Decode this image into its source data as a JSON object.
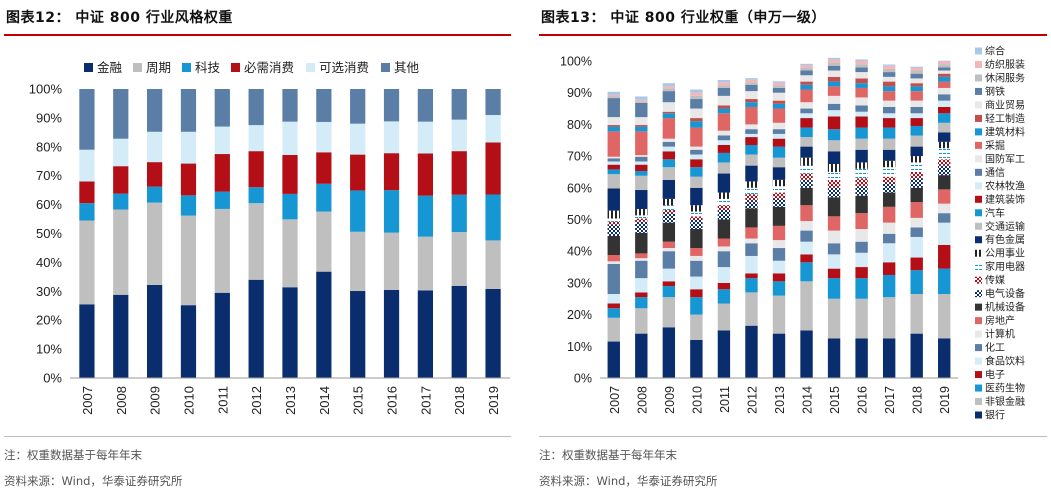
{
  "left_panel": {
    "title": "图表12： 中证 800 行业风格权重",
    "note": "注：权重数据基于每年年末",
    "source": "资料来源：Wind，华泰证券研究所"
  },
  "right_panel": {
    "title": "图表13： 中证 800 行业权重（申万一级）",
    "note": "注：权重数据基于每年年末",
    "source": "资料来源：Wind，华泰证券研究所"
  },
  "chart_data": [
    {
      "type": "bar",
      "stacked": true,
      "title": "中证 800 行业风格权重",
      "categories": [
        "2007",
        "2008",
        "2009",
        "2010",
        "2011",
        "2012",
        "2013",
        "2014",
        "2015",
        "2016",
        "2017",
        "2018",
        "2019"
      ],
      "ylim": [
        0,
        100
      ],
      "y_unit": "%",
      "y_ticks": [
        "0%",
        "10%",
        "20%",
        "30%",
        "40%",
        "50%",
        "60%",
        "70%",
        "80%",
        "90%",
        "100%"
      ],
      "legend_position": "top",
      "series": [
        {
          "name": "金融",
          "color": "#0a2d6e",
          "values": [
            25.5,
            28.8,
            32.2,
            25.2,
            29.5,
            34.0,
            31.4,
            36.8,
            30.1,
            30.5,
            30.3,
            31.9,
            30.8
          ]
        },
        {
          "name": "周期",
          "color": "#bfbfbf",
          "values": [
            29.0,
            29.5,
            28.5,
            31.0,
            29.0,
            26.5,
            23.5,
            20.8,
            20.5,
            19.8,
            18.6,
            18.6,
            16.8
          ]
        },
        {
          "name": "科技",
          "color": "#1696d2",
          "values": [
            6.0,
            5.5,
            5.5,
            7.0,
            6.0,
            5.5,
            8.8,
            9.6,
            14.3,
            14.7,
            14.2,
            12.9,
            15.9
          ]
        },
        {
          "name": "必需消费",
          "color": "#b40f17",
          "values": [
            7.5,
            9.5,
            8.5,
            11.0,
            13.0,
            12.5,
            13.5,
            10.9,
            12.4,
            12.8,
            14.6,
            15.1,
            18.0
          ]
        },
        {
          "name": "可选消费",
          "color": "#d4ecf7",
          "values": [
            11.0,
            9.5,
            10.5,
            11.0,
            9.5,
            9.0,
            11.5,
            10.5,
            10.7,
            11.0,
            11.0,
            10.9,
            9.5
          ]
        },
        {
          "name": "其他",
          "color": "#5a7ea6",
          "values": [
            21.0,
            17.2,
            14.8,
            14.8,
            13.0,
            12.5,
            11.3,
            11.4,
            12.0,
            11.2,
            11.3,
            10.6,
            9.0
          ]
        }
      ]
    },
    {
      "type": "bar",
      "stacked": true,
      "title": "中证 800 行业权重（申万一级）",
      "categories": [
        "2007",
        "2008",
        "2009",
        "2010",
        "2011",
        "2012",
        "2013",
        "2014",
        "2015",
        "2016",
        "2017",
        "2018",
        "2019"
      ],
      "ylim": [
        0,
        100
      ],
      "y_unit": "%",
      "y_ticks": [
        "0%",
        "10%",
        "20%",
        "30%",
        "40%",
        "50%",
        "60%",
        "70%",
        "80%",
        "90%",
        "100%"
      ],
      "legend_position": "right",
      "series": [
        {
          "name": "银行",
          "color": "#0a2d6e",
          "pattern": "solid",
          "values": [
            11.5,
            14.0,
            16.0,
            12.0,
            15.0,
            16.5,
            14.0,
            15.0,
            12.5,
            12.5,
            12.5,
            14.0,
            12.5
          ]
        },
        {
          "name": "非银金融",
          "color": "#bfbfbf",
          "pattern": "solid",
          "values": [
            7.5,
            8.0,
            9.5,
            8.0,
            8.5,
            10.5,
            12.0,
            15.5,
            12.5,
            12.5,
            13.0,
            12.5,
            14.0
          ]
        },
        {
          "name": "医药生物",
          "color": "#1696d2",
          "pattern": "solid",
          "values": [
            3.0,
            3.5,
            3.5,
            5.5,
            4.5,
            4.5,
            4.5,
            6.0,
            6.5,
            6.5,
            7.0,
            7.5,
            8.0
          ]
        },
        {
          "name": "电子",
          "color": "#b40f17",
          "pattern": "solid",
          "values": [
            1.5,
            1.5,
            1.5,
            2.5,
            2.0,
            1.5,
            2.5,
            2.5,
            3.0,
            3.5,
            4.0,
            4.0,
            7.5
          ]
        },
        {
          "name": "食品饮料",
          "color": "#d4ecf7",
          "pattern": "solid",
          "values": [
            3.0,
            4.5,
            4.0,
            4.0,
            5.0,
            5.5,
            4.0,
            4.0,
            4.5,
            4.5,
            6.0,
            6.5,
            7.0
          ]
        },
        {
          "name": "化工",
          "color": "#5a7ea6",
          "pattern": "solid",
          "values": [
            9.5,
            5.5,
            5.5,
            5.0,
            5.0,
            4.0,
            4.0,
            3.5,
            3.5,
            3.5,
            3.0,
            3.0,
            3.0
          ]
        },
        {
          "name": "计算机",
          "color": "#e8e8e8",
          "pattern": "solid",
          "values": [
            0.8,
            0.8,
            1.0,
            1.5,
            1.5,
            1.5,
            2.5,
            3.0,
            4.0,
            4.0,
            3.5,
            3.0,
            3.0
          ]
        },
        {
          "name": "房地产",
          "color": "#e06666",
          "pattern": "solid",
          "values": [
            2.0,
            1.5,
            2.0,
            2.5,
            2.5,
            3.5,
            4.5,
            5.0,
            4.5,
            5.0,
            5.0,
            5.0,
            4.5
          ]
        },
        {
          "name": "机械设备",
          "color": "#333333",
          "pattern": "solid",
          "values": [
            6.0,
            6.5,
            6.0,
            6.0,
            6.0,
            6.0,
            6.0,
            5.5,
            6.0,
            5.5,
            4.5,
            4.5,
            4.5
          ]
        },
        {
          "name": "电气设备",
          "color": "#0a2d6e",
          "pattern": "dots",
          "values": [
            3.5,
            3.5,
            3.0,
            3.0,
            3.0,
            2.5,
            2.5,
            2.5,
            3.0,
            3.0,
            3.0,
            3.0,
            3.0
          ]
        },
        {
          "name": "传媒",
          "color": "#b40f17",
          "pattern": "dots",
          "values": [
            1.0,
            1.0,
            1.0,
            1.0,
            1.5,
            2.0,
            2.0,
            2.0,
            2.5,
            2.5,
            2.0,
            2.0,
            2.0
          ]
        },
        {
          "name": "家用电器",
          "color": "#1696d2",
          "pattern": "dashes",
          "values": [
            1.0,
            1.0,
            1.5,
            1.5,
            2.0,
            2.0,
            2.0,
            2.5,
            2.5,
            3.0,
            3.0,
            3.0,
            3.5
          ]
        },
        {
          "name": "公用事业",
          "color": "#222222",
          "pattern": "vlines",
          "values": [
            2.5,
            2.0,
            2.0,
            2.0,
            2.0,
            2.0,
            2.0,
            2.5,
            2.5,
            2.0,
            2.0,
            2.0,
            2.0
          ]
        },
        {
          "name": "有色金属",
          "color": "#0a2d6e",
          "pattern": "solid",
          "values": [
            7.0,
            6.0,
            6.0,
            5.5,
            6.0,
            5.0,
            4.0,
            3.5,
            4.0,
            4.0,
            3.5,
            3.0,
            3.0
          ]
        },
        {
          "name": "交通运输",
          "color": "#bfbfbf",
          "pattern": "solid",
          "values": [
            4.5,
            4.5,
            4.0,
            3.5,
            3.5,
            3.5,
            3.0,
            3.0,
            3.5,
            3.5,
            3.5,
            3.5,
            3.0
          ]
        },
        {
          "name": "汽车",
          "color": "#1696d2",
          "pattern": "solid",
          "values": [
            1.5,
            1.5,
            2.5,
            3.0,
            3.0,
            3.0,
            3.5,
            3.0,
            3.5,
            3.5,
            3.5,
            3.0,
            3.0
          ]
        },
        {
          "name": "建筑装饰",
          "color": "#b40f17",
          "pattern": "solid",
          "values": [
            1.5,
            2.0,
            2.5,
            2.5,
            2.5,
            2.5,
            2.5,
            3.0,
            4.0,
            3.5,
            3.0,
            2.5,
            2.0
          ]
        },
        {
          "name": "农林牧渔",
          "color": "#d4ecf7",
          "pattern": "solid",
          "values": [
            1.0,
            1.0,
            1.5,
            1.5,
            1.5,
            1.0,
            1.5,
            1.5,
            2.0,
            1.5,
            1.5,
            1.5,
            2.0
          ]
        },
        {
          "name": "通信",
          "color": "#5a7ea6",
          "pattern": "solid",
          "values": [
            1.0,
            1.5,
            1.5,
            1.5,
            1.5,
            1.5,
            1.5,
            1.5,
            2.0,
            2.0,
            2.0,
            2.0,
            2.0
          ]
        },
        {
          "name": "国防军工",
          "color": "#e8e8e8",
          "pattern": "solid",
          "values": [
            0.5,
            0.5,
            1.0,
            1.0,
            1.5,
            1.5,
            2.0,
            2.0,
            2.5,
            2.5,
            2.0,
            2.0,
            2.0
          ]
        },
        {
          "name": "采掘",
          "color": "#e06666",
          "pattern": "solid",
          "values": [
            8.0,
            7.5,
            6.5,
            6.0,
            5.5,
            5.5,
            4.5,
            4.0,
            3.0,
            3.0,
            3.0,
            3.0,
            2.0
          ]
        },
        {
          "name": "建筑材料",
          "color": "#1696d2",
          "pattern": "solid",
          "values": [
            1.5,
            1.5,
            1.5,
            2.0,
            1.5,
            1.5,
            1.5,
            1.5,
            1.5,
            1.5,
            1.5,
            1.5,
            1.5
          ]
        },
        {
          "name": "轻工制造",
          "color": "#c0504d",
          "pattern": "solid",
          "values": [
            0.5,
            0.5,
            0.5,
            1.0,
            1.0,
            1.0,
            1.0,
            1.0,
            1.5,
            1.5,
            1.5,
            1.0,
            1.0
          ]
        },
        {
          "name": "商业贸易",
          "color": "#e8e8e8",
          "pattern": "solid",
          "values": [
            2.5,
            2.5,
            3.0,
            3.0,
            3.0,
            2.5,
            2.5,
            2.0,
            2.0,
            2.0,
            1.5,
            1.5,
            1.0
          ]
        },
        {
          "name": "钢铁",
          "color": "#5a7ea6",
          "pattern": "solid",
          "values": [
            6.0,
            4.5,
            3.5,
            3.0,
            2.5,
            2.0,
            1.5,
            1.5,
            1.5,
            1.5,
            1.5,
            1.5,
            1.0
          ]
        },
        {
          "name": "休闲服务",
          "color": "#bfbfbf",
          "pattern": "solid",
          "values": [
            0.5,
            0.5,
            0.8,
            1.0,
            0.8,
            0.8,
            0.8,
            0.8,
            1.0,
            1.0,
            1.0,
            1.0,
            1.0
          ]
        },
        {
          "name": "纺织服装",
          "color": "#f4b6b6",
          "pattern": "solid",
          "values": [
            0.5,
            0.5,
            0.7,
            1.0,
            1.0,
            0.8,
            0.8,
            0.8,
            1.0,
            1.0,
            1.0,
            0.8,
            0.8
          ]
        },
        {
          "name": "综合",
          "color": "#a8c8e8",
          "pattern": "solid",
          "values": [
            1.0,
            1.0,
            1.0,
            1.0,
            0.7,
            0.5,
            0.5,
            0.5,
            0.5,
            0.5,
            0.4,
            0.4,
            0.3
          ]
        }
      ]
    }
  ]
}
